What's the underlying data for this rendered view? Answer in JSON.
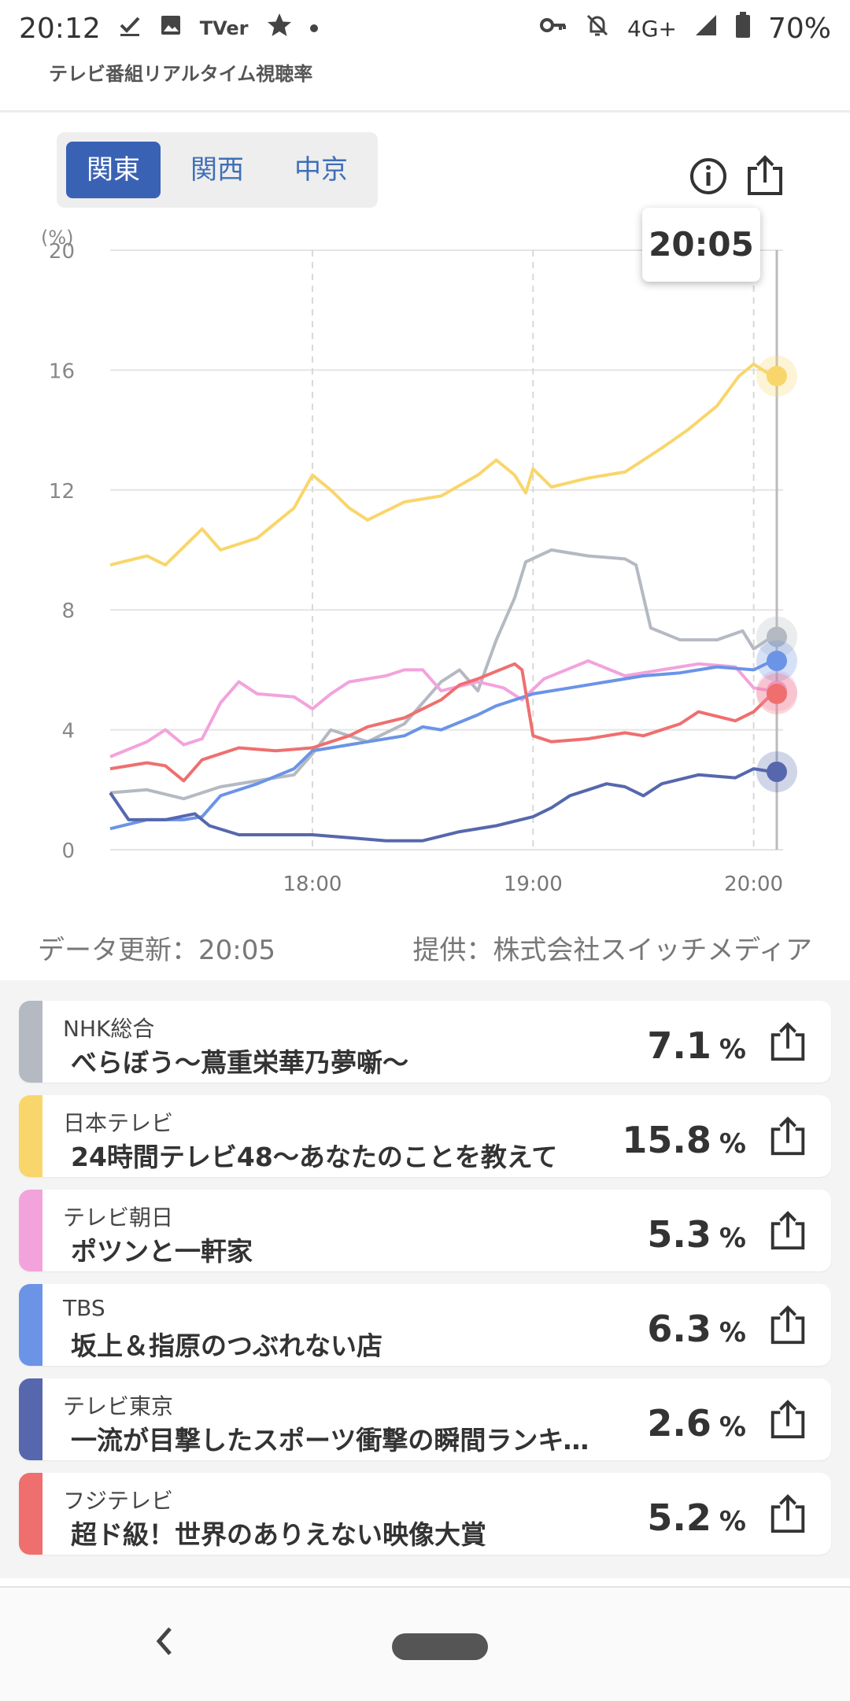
{
  "status_bar": {
    "time": "20:12",
    "left_icons": [
      "check-icon",
      "image-icon",
      "tver-icon",
      "star-icon",
      "dot-icon"
    ],
    "tver_text": "TVer",
    "right_icons": [
      "key-icon",
      "bell-off-icon",
      "signal-icon",
      "battery-icon"
    ],
    "network": "4G+",
    "battery": "70%"
  },
  "app_title": "テレビ番組リアルタイム視聴率",
  "regions": {
    "tabs": [
      "関東",
      "関西",
      "中京"
    ],
    "active": "関東"
  },
  "toolbar": {
    "info_icon": "info-icon",
    "share_icon": "share-icon"
  },
  "tooltip": {
    "time": "20:05"
  },
  "chart_data": {
    "type": "line",
    "unit_label": "(%)",
    "ylim": [
      0,
      20
    ],
    "y_ticks": [
      "20",
      "16",
      "12",
      "8",
      "4",
      "0"
    ],
    "x_ticks": [
      "18:00",
      "19:00",
      "20:00"
    ],
    "x_range": [
      "17:05",
      "20:08"
    ],
    "cursor_time": "20:05",
    "series": [
      {
        "name": "NHK総合",
        "color": "#b4b9c2",
        "points": [
          [
            "17:05",
            1.9
          ],
          [
            "17:15",
            2.0
          ],
          [
            "17:25",
            1.7
          ],
          [
            "17:35",
            2.1
          ],
          [
            "17:45",
            2.3
          ],
          [
            "17:55",
            2.5
          ],
          [
            "18:00",
            3.2
          ],
          [
            "18:05",
            4.0
          ],
          [
            "18:15",
            3.6
          ],
          [
            "18:25",
            4.2
          ],
          [
            "18:35",
            5.6
          ],
          [
            "18:40",
            6.0
          ],
          [
            "18:45",
            5.3
          ],
          [
            "18:50",
            7.0
          ],
          [
            "18:55",
            8.4
          ],
          [
            "18:58",
            9.6
          ],
          [
            "19:05",
            10.0
          ],
          [
            "19:15",
            9.8
          ],
          [
            "19:25",
            9.7
          ],
          [
            "19:28",
            9.5
          ],
          [
            "19:32",
            7.4
          ],
          [
            "19:40",
            7.0
          ],
          [
            "19:50",
            7.0
          ],
          [
            "19:57",
            7.3
          ],
          [
            "20:00",
            6.7
          ],
          [
            "20:05",
            7.1
          ]
        ]
      },
      {
        "name": "日本テレビ",
        "color": "#f9d66b",
        "points": [
          [
            "17:05",
            9.5
          ],
          [
            "17:15",
            9.8
          ],
          [
            "17:20",
            9.5
          ],
          [
            "17:30",
            10.7
          ],
          [
            "17:35",
            10.0
          ],
          [
            "17:45",
            10.4
          ],
          [
            "17:55",
            11.4
          ],
          [
            "18:00",
            12.5
          ],
          [
            "18:05",
            12.0
          ],
          [
            "18:10",
            11.4
          ],
          [
            "18:15",
            11.0
          ],
          [
            "18:25",
            11.6
          ],
          [
            "18:35",
            11.8
          ],
          [
            "18:45",
            12.5
          ],
          [
            "18:50",
            13.0
          ],
          [
            "18:55",
            12.5
          ],
          [
            "18:58",
            11.9
          ],
          [
            "19:00",
            12.7
          ],
          [
            "19:05",
            12.1
          ],
          [
            "19:15",
            12.4
          ],
          [
            "19:25",
            12.6
          ],
          [
            "19:35",
            13.4
          ],
          [
            "19:42",
            14.0
          ],
          [
            "19:50",
            14.8
          ],
          [
            "19:56",
            15.8
          ],
          [
            "20:00",
            16.2
          ],
          [
            "20:05",
            15.8
          ]
        ]
      },
      {
        "name": "テレビ朝日",
        "color": "#f2a3dc",
        "points": [
          [
            "17:05",
            3.1
          ],
          [
            "17:15",
            3.6
          ],
          [
            "17:20",
            4.0
          ],
          [
            "17:25",
            3.5
          ],
          [
            "17:30",
            3.7
          ],
          [
            "17:35",
            4.9
          ],
          [
            "17:40",
            5.6
          ],
          [
            "17:45",
            5.2
          ],
          [
            "17:55",
            5.1
          ],
          [
            "18:00",
            4.7
          ],
          [
            "18:05",
            5.2
          ],
          [
            "18:10",
            5.6
          ],
          [
            "18:20",
            5.8
          ],
          [
            "18:25",
            6.0
          ],
          [
            "18:30",
            6.0
          ],
          [
            "18:35",
            5.3
          ],
          [
            "18:45",
            5.6
          ],
          [
            "18:52",
            5.4
          ],
          [
            "18:57",
            5.0
          ],
          [
            "19:03",
            5.7
          ],
          [
            "19:15",
            6.3
          ],
          [
            "19:25",
            5.8
          ],
          [
            "19:35",
            6.0
          ],
          [
            "19:45",
            6.2
          ],
          [
            "19:55",
            6.1
          ],
          [
            "20:00",
            5.4
          ],
          [
            "20:05",
            5.3
          ]
        ]
      },
      {
        "name": "TBS",
        "color": "#6b94e7",
        "points": [
          [
            "17:05",
            0.7
          ],
          [
            "17:15",
            1.0
          ],
          [
            "17:25",
            1.0
          ],
          [
            "17:30",
            1.1
          ],
          [
            "17:35",
            1.8
          ],
          [
            "17:45",
            2.2
          ],
          [
            "17:55",
            2.7
          ],
          [
            "18:00",
            3.3
          ],
          [
            "18:05",
            3.4
          ],
          [
            "18:10",
            3.5
          ],
          [
            "18:15",
            3.6
          ],
          [
            "18:25",
            3.8
          ],
          [
            "18:30",
            4.1
          ],
          [
            "18:35",
            4.0
          ],
          [
            "18:45",
            4.5
          ],
          [
            "18:50",
            4.8
          ],
          [
            "19:00",
            5.2
          ],
          [
            "19:10",
            5.4
          ],
          [
            "19:20",
            5.6
          ],
          [
            "19:30",
            5.8
          ],
          [
            "19:40",
            5.9
          ],
          [
            "19:50",
            6.1
          ],
          [
            "20:00",
            6.0
          ],
          [
            "20:05",
            6.3
          ]
        ]
      },
      {
        "name": "テレビ東京",
        "color": "#5667ad",
        "points": [
          [
            "17:05",
            1.9
          ],
          [
            "17:10",
            1.0
          ],
          [
            "17:20",
            1.0
          ],
          [
            "17:28",
            1.2
          ],
          [
            "17:32",
            0.8
          ],
          [
            "17:40",
            0.5
          ],
          [
            "17:50",
            0.5
          ],
          [
            "18:00",
            0.5
          ],
          [
            "18:10",
            0.4
          ],
          [
            "18:20",
            0.3
          ],
          [
            "18:25",
            0.3
          ],
          [
            "18:30",
            0.3
          ],
          [
            "18:40",
            0.6
          ],
          [
            "18:50",
            0.8
          ],
          [
            "19:00",
            1.1
          ],
          [
            "19:05",
            1.4
          ],
          [
            "19:10",
            1.8
          ],
          [
            "19:15",
            2.0
          ],
          [
            "19:20",
            2.2
          ],
          [
            "19:25",
            2.1
          ],
          [
            "19:30",
            1.8
          ],
          [
            "19:35",
            2.2
          ],
          [
            "19:45",
            2.5
          ],
          [
            "19:55",
            2.4
          ],
          [
            "20:00",
            2.7
          ],
          [
            "20:05",
            2.6
          ]
        ]
      },
      {
        "name": "フジテレビ",
        "color": "#ef6f6f",
        "points": [
          [
            "17:05",
            2.7
          ],
          [
            "17:15",
            2.9
          ],
          [
            "17:20",
            2.8
          ],
          [
            "17:25",
            2.3
          ],
          [
            "17:30",
            3.0
          ],
          [
            "17:40",
            3.4
          ],
          [
            "17:50",
            3.3
          ],
          [
            "18:00",
            3.4
          ],
          [
            "18:05",
            3.6
          ],
          [
            "18:10",
            3.8
          ],
          [
            "18:15",
            4.1
          ],
          [
            "18:25",
            4.4
          ],
          [
            "18:35",
            5.0
          ],
          [
            "18:40",
            5.5
          ],
          [
            "18:45",
            5.7
          ],
          [
            "18:55",
            6.2
          ],
          [
            "18:57",
            6.0
          ],
          [
            "19:00",
            3.8
          ],
          [
            "19:05",
            3.6
          ],
          [
            "19:15",
            3.7
          ],
          [
            "19:25",
            3.9
          ],
          [
            "19:30",
            3.8
          ],
          [
            "19:40",
            4.2
          ],
          [
            "19:45",
            4.6
          ],
          [
            "19:55",
            4.3
          ],
          [
            "20:00",
            4.6
          ],
          [
            "20:05",
            5.2
          ]
        ]
      }
    ]
  },
  "update_info": {
    "updated": "データ更新：20:05",
    "provider": "提供：株式会社スイッチメディア"
  },
  "programs": [
    {
      "station": "NHK総合",
      "title": "べらぼう～蔦重栄華乃夢噺～",
      "rating": "7.1",
      "unit": "%",
      "color": "#b4b9c2"
    },
    {
      "station": "日本テレビ",
      "title": "24時間テレビ48～あなたのことを教えて",
      "rating": "15.8",
      "unit": "%",
      "color": "#f9d66b"
    },
    {
      "station": "テレビ朝日",
      "title": "ポツンと一軒家",
      "rating": "5.3",
      "unit": "%",
      "color": "#f2a3dc"
    },
    {
      "station": "TBS",
      "title": "坂上＆指原のつぶれない店",
      "rating": "6.3",
      "unit": "%",
      "color": "#6b94e7"
    },
    {
      "station": "テレビ東京",
      "title": "一流が目撃したスポーツ衝撃の瞬間ランキング",
      "rating": "2.6",
      "unit": "%",
      "color": "#5667ad"
    },
    {
      "station": "フジテレビ",
      "title": "超ド級！世界のありえない映像大賞",
      "rating": "5.2",
      "unit": "%",
      "color": "#ef6f6f"
    }
  ],
  "nav_bar": {
    "back_icon": "back-chevron-icon",
    "home_icon": "home-pill-icon"
  }
}
